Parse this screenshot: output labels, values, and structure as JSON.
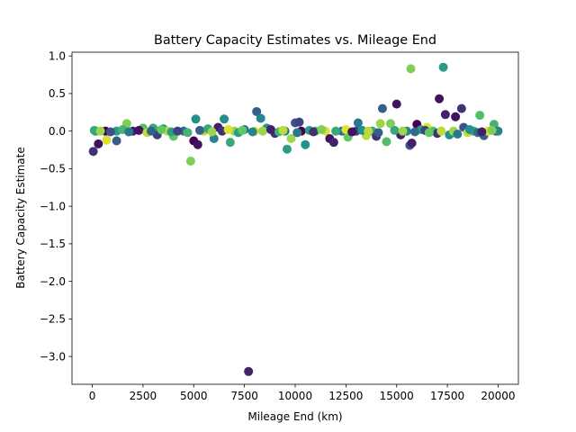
{
  "chart_data": {
    "type": "scatter",
    "title": "Battery Capacity Estimates vs. Mileage End",
    "xlabel": "Mileage End (km)",
    "ylabel": "Battery Capacity Estimate",
    "xlim": [
      -1000,
      21000
    ],
    "ylim": [
      -3.37,
      1.05
    ],
    "xticks": [
      0,
      2500,
      5000,
      7500,
      10000,
      12500,
      15000,
      17500,
      20000
    ],
    "xtick_labels": [
      "0",
      "2500",
      "5000",
      "7500",
      "10000",
      "12500",
      "15000",
      "17500",
      "20000"
    ],
    "yticks": [
      -3.0,
      -2.5,
      -2.0,
      -1.5,
      -1.0,
      -0.5,
      0.0,
      0.5,
      1.0
    ],
    "ytick_labels": [
      "−3.0",
      "−2.5",
      "−2.0",
      "−1.5",
      "−1.0",
      "−0.5",
      "0.0",
      "0.5",
      "1.0"
    ],
    "grid": false,
    "legend": "none",
    "colormap": "viridis",
    "points": [
      {
        "x": 50,
        "y": -0.27,
        "c": 0.15
      },
      {
        "x": 150,
        "y": 0.0,
        "c": 0.45
      },
      {
        "x": 300,
        "y": -0.17,
        "c": 0.05
      },
      {
        "x": 700,
        "y": -0.12,
        "c": 0.95
      },
      {
        "x": 650,
        "y": 0.0,
        "c": 0.0
      },
      {
        "x": 1200,
        "y": -0.13,
        "c": 0.3
      },
      {
        "x": 1200,
        "y": 0.0,
        "c": 0.55
      },
      {
        "x": 1700,
        "y": 0.1,
        "c": 0.8
      },
      {
        "x": 2000,
        "y": 0.0,
        "c": 0.1
      },
      {
        "x": 2500,
        "y": 0.04,
        "c": 0.7
      },
      {
        "x": 3000,
        "y": 0.04,
        "c": 0.6
      },
      {
        "x": 3200,
        "y": -0.05,
        "c": 0.2
      },
      {
        "x": 3500,
        "y": 0.03,
        "c": 0.5
      },
      {
        "x": 3700,
        "y": 0.0,
        "c": 0.9
      },
      {
        "x": 4000,
        "y": -0.07,
        "c": 0.75
      },
      {
        "x": 4500,
        "y": 0.0,
        "c": 0.35
      },
      {
        "x": 4850,
        "y": -0.4,
        "c": 0.8
      },
      {
        "x": 5000,
        "y": -0.13,
        "c": 0.0
      },
      {
        "x": 5100,
        "y": 0.16,
        "c": 0.5
      },
      {
        "x": 5200,
        "y": -0.18,
        "c": 0.05
      },
      {
        "x": 5500,
        "y": 0.0,
        "c": 0.9
      },
      {
        "x": 6000,
        "y": -0.1,
        "c": 0.45
      },
      {
        "x": 6200,
        "y": 0.05,
        "c": 0.1
      },
      {
        "x": 6500,
        "y": 0.16,
        "c": 0.5
      },
      {
        "x": 6800,
        "y": -0.15,
        "c": 0.6
      },
      {
        "x": 7000,
        "y": 0.0,
        "c": 0.85
      },
      {
        "x": 7500,
        "y": 0.02,
        "c": 0.35
      },
      {
        "x": 7700,
        "y": -3.2,
        "c": 0.1
      },
      {
        "x": 8000,
        "y": 0.0,
        "c": 0.95
      },
      {
        "x": 8100,
        "y": 0.26,
        "c": 0.3
      },
      {
        "x": 8300,
        "y": 0.17,
        "c": 0.45
      },
      {
        "x": 8600,
        "y": 0.04,
        "c": 0.5
      },
      {
        "x": 9000,
        "y": -0.03,
        "c": 0.15
      },
      {
        "x": 9500,
        "y": 0.0,
        "c": 0.4
      },
      {
        "x": 9600,
        "y": -0.24,
        "c": 0.55
      },
      {
        "x": 9800,
        "y": -0.1,
        "c": 0.85
      },
      {
        "x": 10000,
        "y": 0.11,
        "c": 0.25
      },
      {
        "x": 10200,
        "y": 0.12,
        "c": 0.2
      },
      {
        "x": 10500,
        "y": -0.18,
        "c": 0.5
      },
      {
        "x": 10300,
        "y": 0.0,
        "c": 0.0
      },
      {
        "x": 11000,
        "y": 0.0,
        "c": 0.7
      },
      {
        "x": 11500,
        "y": 0.0,
        "c": 0.95
      },
      {
        "x": 11700,
        "y": -0.1,
        "c": 0.05
      },
      {
        "x": 11900,
        "y": -0.15,
        "c": 0.1
      },
      {
        "x": 12300,
        "y": 0.0,
        "c": 0.35
      },
      {
        "x": 12600,
        "y": -0.08,
        "c": 0.75
      },
      {
        "x": 13000,
        "y": 0.0,
        "c": 0.2
      },
      {
        "x": 13100,
        "y": 0.11,
        "c": 0.4
      },
      {
        "x": 13500,
        "y": -0.06,
        "c": 0.9
      },
      {
        "x": 13800,
        "y": 0.0,
        "c": 0.6
      },
      {
        "x": 14000,
        "y": -0.07,
        "c": 0.15
      },
      {
        "x": 14200,
        "y": 0.1,
        "c": 0.85
      },
      {
        "x": 14300,
        "y": 0.3,
        "c": 0.3
      },
      {
        "x": 14500,
        "y": -0.14,
        "c": 0.7
      },
      {
        "x": 14700,
        "y": 0.1,
        "c": 0.8
      },
      {
        "x": 15000,
        "y": 0.36,
        "c": 0.05
      },
      {
        "x": 15200,
        "y": -0.05,
        "c": 0.1
      },
      {
        "x": 15500,
        "y": 0.0,
        "c": 0.45
      },
      {
        "x": 15650,
        "y": -0.19,
        "c": 0.25
      },
      {
        "x": 15700,
        "y": 0.83,
        "c": 0.8
      },
      {
        "x": 15750,
        "y": -0.16,
        "c": 0.1
      },
      {
        "x": 16000,
        "y": 0.09,
        "c": 0.0
      },
      {
        "x": 16200,
        "y": 0.02,
        "c": 0.55
      },
      {
        "x": 16500,
        "y": 0.05,
        "c": 0.95
      },
      {
        "x": 16800,
        "y": 0.0,
        "c": 0.7
      },
      {
        "x": 17000,
        "y": -0.03,
        "c": 0.15
      },
      {
        "x": 17100,
        "y": 0.43,
        "c": 0.05
      },
      {
        "x": 17300,
        "y": 0.85,
        "c": 0.55
      },
      {
        "x": 17400,
        "y": 0.22,
        "c": 0.1
      },
      {
        "x": 17600,
        "y": -0.05,
        "c": 0.5
      },
      {
        "x": 17800,
        "y": 0.0,
        "c": 0.85
      },
      {
        "x": 17900,
        "y": 0.19,
        "c": 0.05
      },
      {
        "x": 18000,
        "y": -0.04,
        "c": 0.4
      },
      {
        "x": 18200,
        "y": 0.3,
        "c": 0.15
      },
      {
        "x": 18300,
        "y": 0.05,
        "c": 0.25
      },
      {
        "x": 18500,
        "y": -0.02,
        "c": 0.9
      },
      {
        "x": 18800,
        "y": 0.0,
        "c": 0.6
      },
      {
        "x": 19000,
        "y": -0.02,
        "c": 0.35
      },
      {
        "x": 19100,
        "y": 0.21,
        "c": 0.7
      },
      {
        "x": 19300,
        "y": -0.06,
        "c": 0.3
      },
      {
        "x": 19500,
        "y": 0.0,
        "c": 0.95
      },
      {
        "x": 19800,
        "y": 0.09,
        "c": 0.65
      },
      {
        "x": 19900,
        "y": 0.0,
        "c": 0.2
      },
      {
        "x": 20000,
        "y": 0.0,
        "c": 0.45
      },
      {
        "x": 100,
        "y": 0.01,
        "c": 0.6
      },
      {
        "x": 400,
        "y": 0.0,
        "c": 0.85
      },
      {
        "x": 900,
        "y": -0.01,
        "c": 0.25
      },
      {
        "x": 1500,
        "y": 0.02,
        "c": 0.65
      },
      {
        "x": 1800,
        "y": -0.01,
        "c": 0.4
      },
      {
        "x": 2300,
        "y": 0.01,
        "c": 0.05
      },
      {
        "x": 2700,
        "y": -0.02,
        "c": 0.9
      },
      {
        "x": 2900,
        "y": 0.0,
        "c": 0.3
      },
      {
        "x": 3400,
        "y": 0.02,
        "c": 0.75
      },
      {
        "x": 3900,
        "y": -0.01,
        "c": 0.55
      },
      {
        "x": 4200,
        "y": 0.0,
        "c": 0.2
      },
      {
        "x": 4700,
        "y": -0.02,
        "c": 0.65
      },
      {
        "x": 5300,
        "y": 0.01,
        "c": 0.3
      },
      {
        "x": 5700,
        "y": 0.03,
        "c": 0.6
      },
      {
        "x": 5900,
        "y": -0.01,
        "c": 0.85
      },
      {
        "x": 6400,
        "y": 0.0,
        "c": 0.15
      },
      {
        "x": 6700,
        "y": 0.02,
        "c": 0.95
      },
      {
        "x": 7200,
        "y": -0.02,
        "c": 0.55
      },
      {
        "x": 7400,
        "y": 0.01,
        "c": 0.75
      },
      {
        "x": 7900,
        "y": -0.01,
        "c": 0.45
      },
      {
        "x": 8400,
        "y": 0.0,
        "c": 0.85
      },
      {
        "x": 8800,
        "y": 0.02,
        "c": 0.1
      },
      {
        "x": 9200,
        "y": -0.01,
        "c": 0.65
      },
      {
        "x": 9400,
        "y": 0.01,
        "c": 0.9
      },
      {
        "x": 10100,
        "y": -0.02,
        "c": 0.4
      },
      {
        "x": 10700,
        "y": 0.01,
        "c": 0.55
      },
      {
        "x": 10900,
        "y": -0.01,
        "c": 0.15
      },
      {
        "x": 11300,
        "y": 0.02,
        "c": 0.8
      },
      {
        "x": 12000,
        "y": 0.0,
        "c": 0.6
      },
      {
        "x": 12500,
        "y": 0.02,
        "c": 0.95
      },
      {
        "x": 12800,
        "y": -0.01,
        "c": 0.05
      },
      {
        "x": 13300,
        "y": 0.01,
        "c": 0.5
      },
      {
        "x": 13600,
        "y": 0.0,
        "c": 0.9
      },
      {
        "x": 14100,
        "y": -0.02,
        "c": 0.3
      },
      {
        "x": 14900,
        "y": 0.01,
        "c": 0.6
      },
      {
        "x": 15300,
        "y": 0.0,
        "c": 0.85
      },
      {
        "x": 15900,
        "y": -0.01,
        "c": 0.35
      },
      {
        "x": 16400,
        "y": 0.01,
        "c": 0.2
      },
      {
        "x": 16600,
        "y": -0.02,
        "c": 0.75
      },
      {
        "x": 17200,
        "y": 0.0,
        "c": 0.9
      },
      {
        "x": 18600,
        "y": 0.02,
        "c": 0.5
      },
      {
        "x": 19200,
        "y": -0.01,
        "c": 0.1
      },
      {
        "x": 19700,
        "y": 0.01,
        "c": 0.8
      }
    ]
  }
}
